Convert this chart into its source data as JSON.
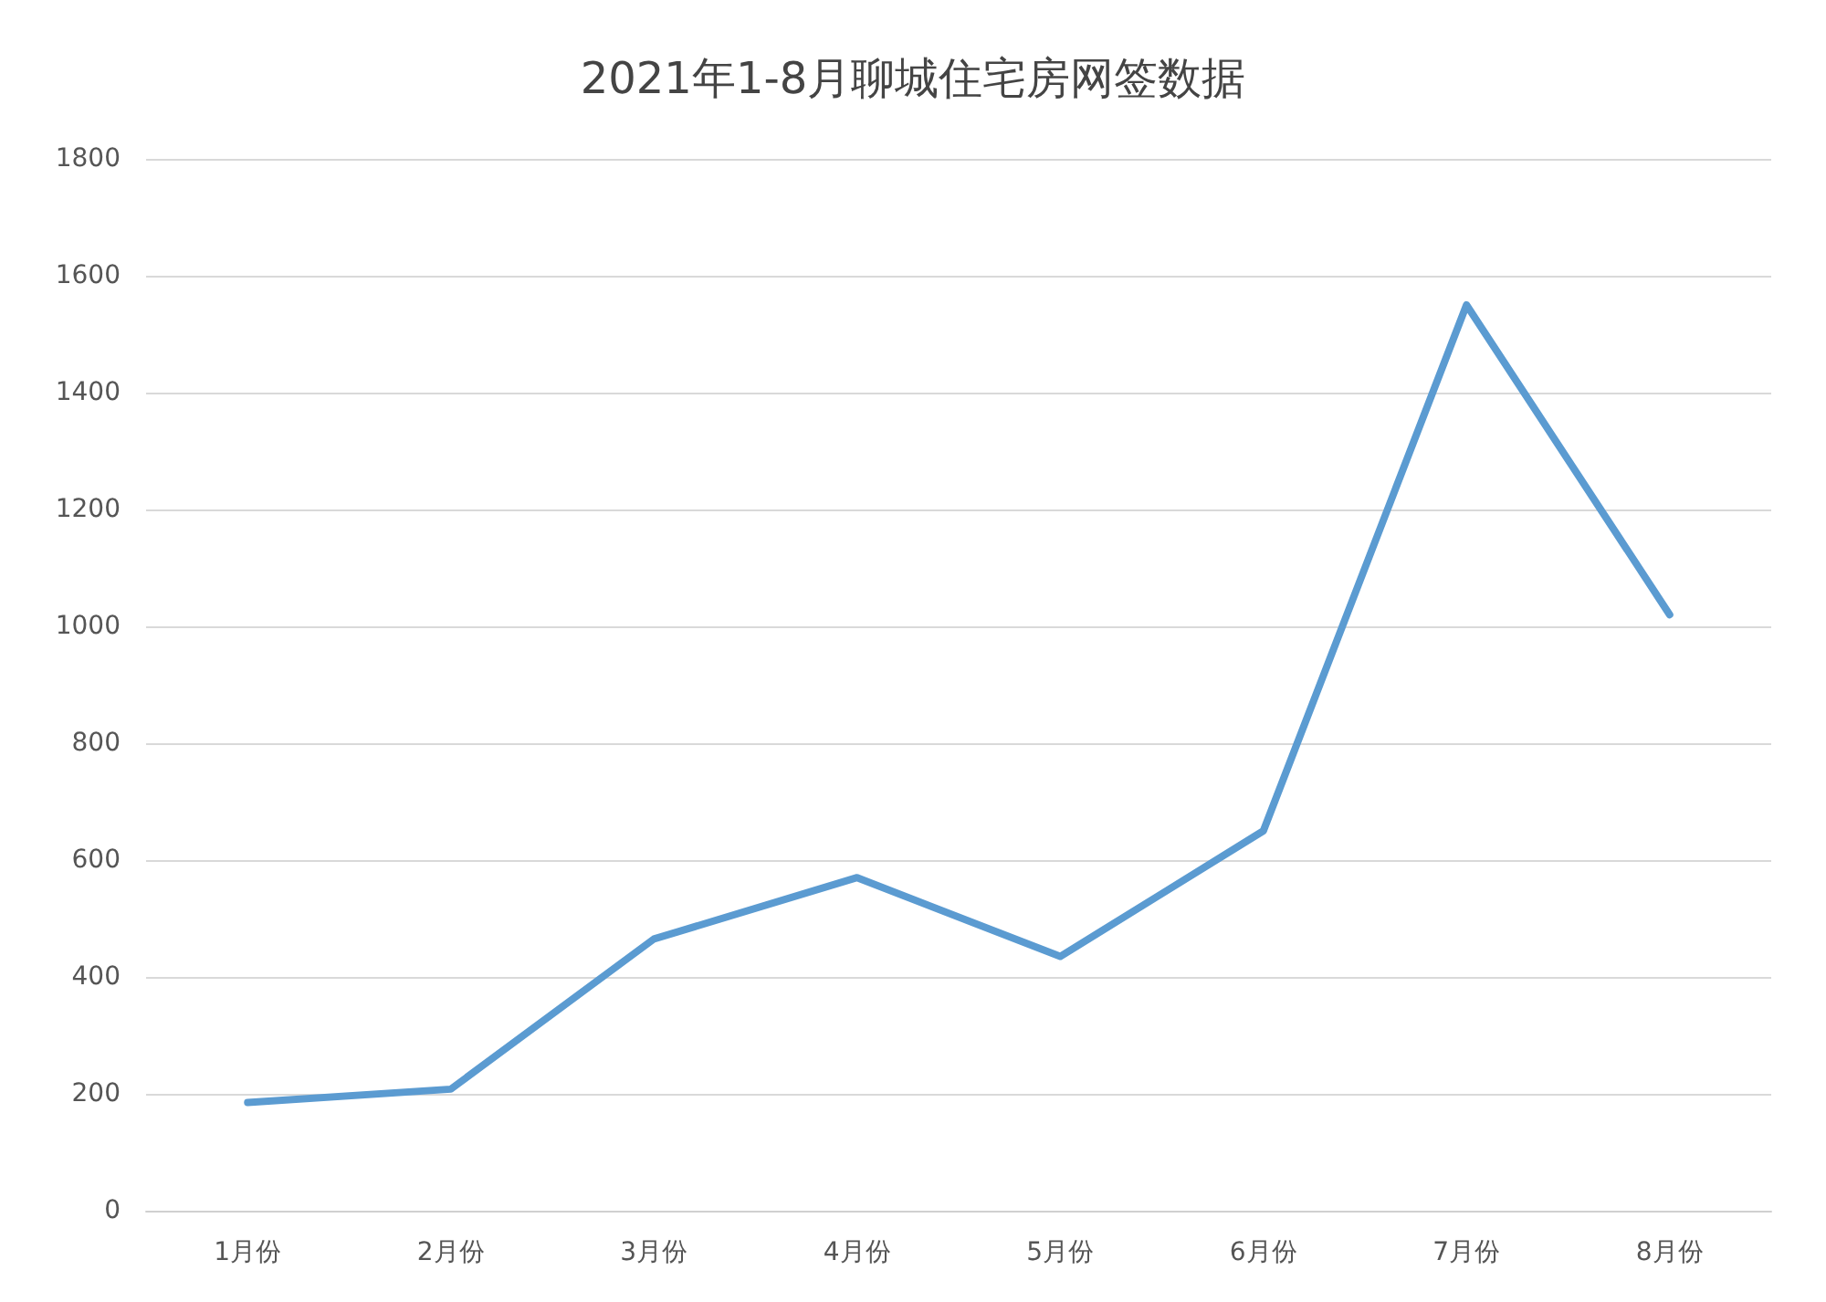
{
  "chart_data": {
    "type": "line",
    "title": "2021年1-8月聊城住宅房网签数据",
    "categories": [
      "1月份",
      "2月份",
      "3月份",
      "4月份",
      "5月份",
      "6月份",
      "7月份",
      "8月份"
    ],
    "series": [
      {
        "color": "#5b9bd1",
        "values": [
          185,
          208,
          465,
          570,
          435,
          650,
          1550,
          1020
        ]
      }
    ],
    "ylim": [
      0,
      1800
    ],
    "yticks": [
      0,
      200,
      400,
      600,
      800,
      1000,
      1200,
      1400,
      1600,
      1800
    ],
    "grid": "y",
    "marker": "none",
    "line_style": "solid"
  }
}
